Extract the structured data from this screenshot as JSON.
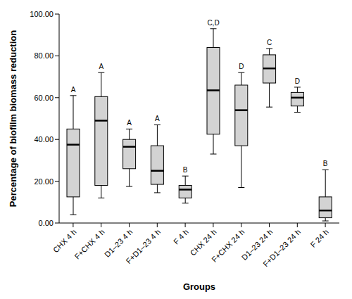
{
  "chart_data": {
    "type": "box",
    "x_label": "Groups",
    "y_label": "Percentage of biofilm biomass reduction",
    "categories": [
      "CHX 4 h",
      "F+CHX 4 h",
      "D1–23 4 h",
      "F+D1–23 4 h",
      "F 4 h",
      "CHX 24 h",
      "F+CHX 24 h",
      "D1–23 24 h",
      "F+D1–23 24 h",
      "F 24 h"
    ],
    "min": [
      4,
      12,
      17.5,
      14.5,
      9.5,
      33,
      17,
      55.5,
      53,
      1
    ],
    "q1": [
      12.5,
      18,
      26,
      18.5,
      12,
      42.5,
      37,
      67,
      56,
      2.5
    ],
    "median": [
      37.5,
      49,
      36.5,
      25,
      16,
      63.5,
      54,
      74,
      60,
      6
    ],
    "q3": [
      45,
      60.5,
      40,
      37,
      18,
      84,
      66,
      80.5,
      62.5,
      12.5
    ],
    "max": [
      61,
      72,
      45,
      47,
      22.5,
      93,
      72,
      83.5,
      65,
      25.5
    ],
    "group_labels": [
      "A",
      "A",
      "A",
      "A",
      "B",
      "C,D",
      "D",
      "C",
      "D",
      "B"
    ],
    "color": "#d3d3d3",
    "ylim": [
      0,
      100
    ],
    "yticks": [
      {
        "value": 0,
        "label": "0.00"
      },
      {
        "value": 20,
        "label": "20.00"
      },
      {
        "value": 40,
        "label": "40.00"
      },
      {
        "value": 60,
        "label": "60.00"
      },
      {
        "value": 80,
        "label": "80.00"
      },
      {
        "value": 100,
        "label": "100.00"
      }
    ],
    "grid": false
  }
}
